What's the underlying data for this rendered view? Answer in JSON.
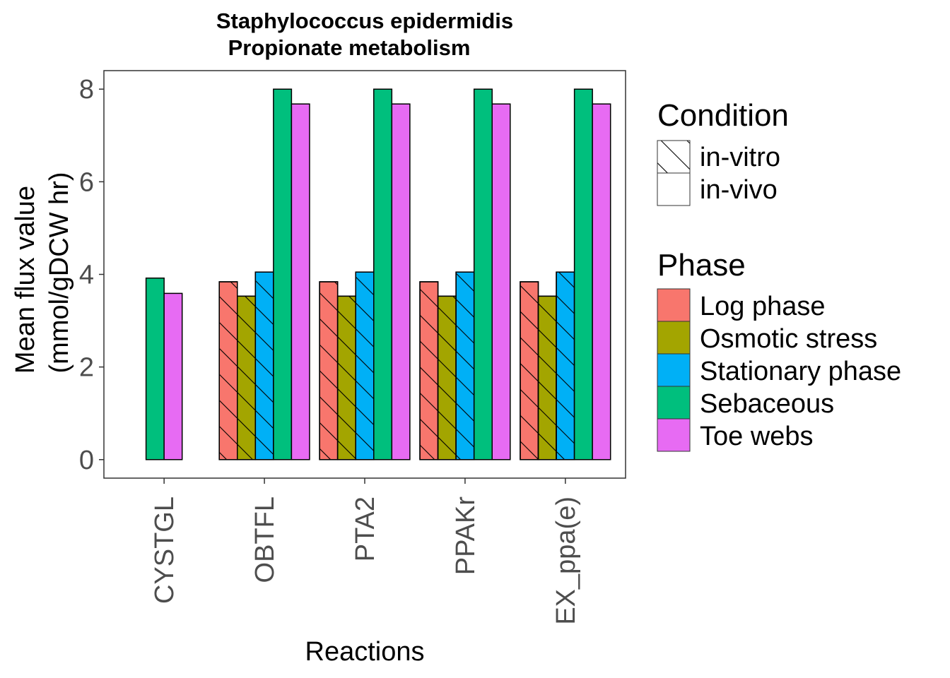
{
  "chart_data": {
    "type": "bar",
    "title": [
      "Staphylococcus epidermidis",
      "Propionate metabolism"
    ],
    "xlabel": "Reactions",
    "ylabel": [
      "Mean flux value",
      "(mmol/gDCW hr)"
    ],
    "ylim": [
      -0.4,
      8.4
    ],
    "yticks": [
      0,
      2,
      4,
      6,
      8
    ],
    "grid": false,
    "legend_position": "right",
    "categories": [
      "CYSTGL",
      "OBTFL",
      "PTA2",
      "PPAKr",
      "EX_ppa(e)"
    ],
    "series": [
      {
        "name": "Log phase",
        "color": "#F8766D",
        "condition": "in-vitro",
        "values": [
          0,
          3.84,
          3.84,
          3.84,
          3.84
        ]
      },
      {
        "name": "Osmotic stress",
        "color": "#A3A500",
        "condition": "in-vitro",
        "values": [
          0,
          3.53,
          3.53,
          3.53,
          3.53
        ]
      },
      {
        "name": "Stationary phase",
        "color": "#00B0F6",
        "condition": "in-vitro",
        "values": [
          0,
          4.05,
          4.05,
          4.05,
          4.05
        ]
      },
      {
        "name": "Sebaceous",
        "color": "#00BF7D",
        "condition": "in-vivo",
        "values": [
          3.92,
          8.0,
          8.0,
          8.0,
          8.0
        ]
      },
      {
        "name": "Toe webs",
        "color": "#E76BF3",
        "condition": "in-vivo",
        "values": [
          3.59,
          7.68,
          7.68,
          7.68,
          7.68
        ]
      }
    ],
    "legends": {
      "condition": {
        "title": "Condition",
        "items": [
          {
            "label": "in-vitro",
            "pattern": "hatched"
          },
          {
            "label": "in-vivo",
            "pattern": "plain"
          }
        ]
      },
      "phase": {
        "title": "Phase",
        "items": [
          {
            "label": "Log phase",
            "color": "#F8766D"
          },
          {
            "label": "Osmotic stress",
            "color": "#A3A500"
          },
          {
            "label": "Stationary phase",
            "color": "#00B0F6"
          },
          {
            "label": "Sebaceous",
            "color": "#00BF7D"
          },
          {
            "label": "Toe webs",
            "color": "#E76BF3"
          }
        ]
      }
    }
  }
}
